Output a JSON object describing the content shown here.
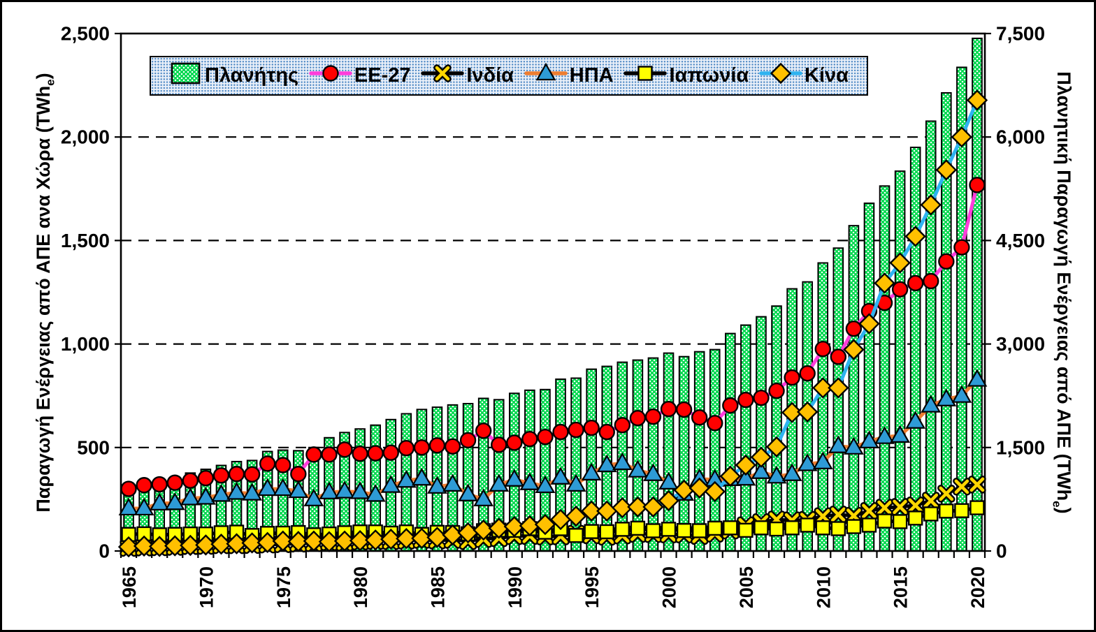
{
  "chart_data": {
    "type": "bar",
    "subtype": "bar-and-line-combo",
    "title": "",
    "x": [
      1965,
      1966,
      1967,
      1968,
      1969,
      1970,
      1971,
      1972,
      1973,
      1974,
      1975,
      1976,
      1977,
      1978,
      1979,
      1980,
      1981,
      1982,
      1983,
      1984,
      1985,
      1986,
      1987,
      1988,
      1989,
      1990,
      1991,
      1992,
      1993,
      1994,
      1995,
      1996,
      1997,
      1998,
      1999,
      2000,
      2001,
      2002,
      2003,
      2004,
      2005,
      2006,
      2007,
      2008,
      2009,
      2010,
      2011,
      2012,
      2013,
      2014,
      2015,
      2016,
      2017,
      2018,
      2019,
      2020
    ],
    "x_tick_labels": [
      "1965",
      "1970",
      "1975",
      "1980",
      "1985",
      "1990",
      "1995",
      "2000",
      "2005",
      "2010",
      "2015",
      "2020"
    ],
    "axis_left": {
      "title": "Παραγωγή Ενέργειας από ΑΠΕ ανα Χώρα (TWh",
      "title_sub": "e",
      "title_suffix": ")",
      "min": 0,
      "max": 2500,
      "step": 500,
      "tick_labels": [
        "0",
        "500",
        "1,000",
        "1,500",
        "2,000",
        "2,500"
      ]
    },
    "axis_right": {
      "title": "Πλανητική Παραγωγή Ενέργειας από ΑΠΕ (TWh",
      "title_sub": "e",
      "title_suffix": ")",
      "min": 0,
      "max": 7500,
      "step": 1500,
      "tick_labels": [
        "0",
        "1,500",
        "3,000",
        "4,500",
        "6,000",
        "7,500"
      ]
    },
    "grid": {
      "style": "dashed",
      "color": "#000000",
      "values_left": [
        500,
        1000,
        1500,
        2000
      ]
    },
    "legend_position": "top",
    "series": [
      {
        "label": "Πλανήτης",
        "type": "bar",
        "axis": "right",
        "fill": "#00d84e",
        "pattern_dot": "#ffffff",
        "stroke": "#000000",
        "values": [
          923,
          975,
          1000,
          1060,
          1130,
          1184,
          1240,
          1296,
          1312,
          1442,
          1462,
          1454,
          1500,
          1642,
          1717,
          1769,
          1824,
          1905,
          1989,
          2051,
          2084,
          2117,
          2136,
          2212,
          2193,
          2285,
          2330,
          2340,
          2490,
          2505,
          2635,
          2676,
          2736,
          2767,
          2797,
          2868,
          2817,
          2888,
          2919,
          3152,
          3274,
          3395,
          3550,
          3800,
          3900,
          4175,
          4390,
          4715,
          5040,
          5290,
          5505,
          5850,
          6230,
          6640,
          7010,
          7430
        ]
      },
      {
        "label": "EE-27",
        "type": "line",
        "axis": "left",
        "line_color": "#ff3ddb",
        "marker": "circle",
        "marker_fill": "#ff0000",
        "marker_stroke": "#000000",
        "values": [
          300,
          318,
          322,
          330,
          340,
          352,
          365,
          372,
          370,
          422,
          415,
          372,
          466,
          466,
          490,
          470,
          472,
          475,
          497,
          500,
          510,
          505,
          535,
          581,
          513,
          523,
          541,
          551,
          575,
          585,
          595,
          575,
          608,
          642,
          649,
          686,
          683,
          645,
          618,
          703,
          730,
          740,
          774,
          838,
          858,
          976,
          938,
          1074,
          1159,
          1199,
          1264,
          1294,
          1304,
          1399,
          1467,
          1768
        ]
      },
      {
        "label": "Ινδία",
        "type": "line",
        "axis": "left",
        "line_color": "#000000",
        "marker": "x",
        "marker_fill": "#ffd700",
        "marker_stroke": "#000000",
        "values": [
          15,
          17,
          18,
          20,
          24,
          25,
          28,
          28,
          29,
          31,
          33,
          36,
          38,
          43,
          41,
          46,
          49,
          48,
          50,
          54,
          51,
          54,
          48,
          58,
          62,
          72,
          73,
          70,
          71,
          83,
          76,
          69,
          75,
          83,
          82,
          80,
          80,
          73,
          84,
          99,
          124,
          139,
          152,
          148,
          150,
          168,
          176,
          170,
          193,
          209,
          213,
          220,
          243,
          277,
          311,
          321
        ]
      },
      {
        "label": "ΗΠΑ",
        "type": "line",
        "axis": "left",
        "line_color": "#ed7d31",
        "marker": "triangle",
        "marker_fill": "#2e9bd6",
        "marker_stroke": "#000000",
        "values": [
          206,
          206,
          230,
          232,
          255,
          258,
          272,
          282,
          278,
          300,
          300,
          290,
          250,
          284,
          288,
          285,
          272,
          315,
          340,
          350,
          311,
          321,
          274,
          250,
          321,
          345,
          328,
          314,
          355,
          321,
          375,
          415,
          425,
          389,
          372,
          331,
          277,
          348,
          345,
          348,
          350,
          382,
          360,
          372,
          420,
          429,
          507,
          500,
          530,
          551,
          557,
          625,
          703,
          733,
          750,
          828
        ]
      },
      {
        "label": "Ιαπωνία",
        "type": "line",
        "axis": "left",
        "line_color": "#000000",
        "marker": "square",
        "marker_fill": "#ffff00",
        "marker_stroke": "#000000",
        "values": [
          80,
          83,
          78,
          80,
          82,
          82,
          88,
          91,
          75,
          85,
          86,
          89,
          78,
          82,
          88,
          92,
          92,
          86,
          92,
          80,
          90,
          89,
          83,
          98,
          101,
          100,
          108,
          91,
          108,
          75,
          94,
          93,
          105,
          110,
          98,
          105,
          99,
          98,
          110,
          112,
          100,
          112,
          106,
          112,
          125,
          112,
          108,
          118,
          125,
          145,
          142,
          159,
          179,
          193,
          195,
          209
        ]
      },
      {
        "label": "Κίνα",
        "type": "line",
        "axis": "left",
        "line_color": "#2fb3f0",
        "marker": "diamond",
        "marker_fill": "#ffc000",
        "marker_stroke": "#000000",
        "values": [
          20,
          24,
          22,
          25,
          27,
          29,
          33,
          35,
          39,
          41,
          48,
          46,
          48,
          45,
          48,
          50,
          53,
          57,
          60,
          61,
          66,
          78,
          88,
          101,
          110,
          118,
          122,
          128,
          152,
          168,
          193,
          193,
          209,
          213,
          213,
          243,
          294,
          304,
          287,
          361,
          415,
          453,
          503,
          669,
          672,
          788,
          788,
          973,
          1098,
          1294,
          1392,
          1520,
          1672,
          1841,
          2000,
          2178
        ]
      }
    ]
  }
}
